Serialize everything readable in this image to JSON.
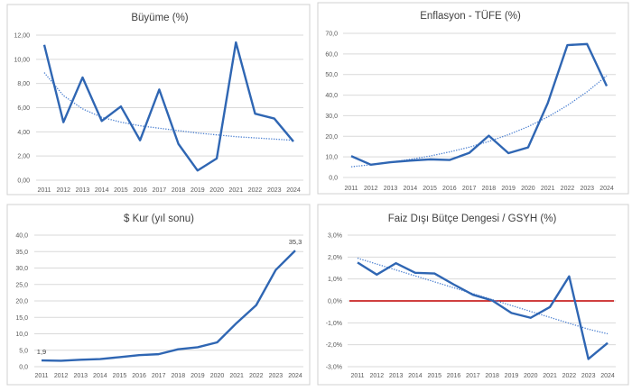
{
  "colors": {
    "line": "#2f66b3",
    "trend": "#4a7fd0",
    "grid": "#d9d9d9",
    "reference": "#c00000",
    "panel_border": "#d0d0d0"
  },
  "chart_data": [
    {
      "type": "line",
      "title": "Büyüme (%)",
      "categories": [
        "2011",
        "2012",
        "2013",
        "2014",
        "2015",
        "2016",
        "2017",
        "2018",
        "2019",
        "2020",
        "2021",
        "2022",
        "2023",
        "2024"
      ],
      "values": [
        11.2,
        4.8,
        8.5,
        4.9,
        6.1,
        3.3,
        7.5,
        3.0,
        0.8,
        1.8,
        11.4,
        5.5,
        5.1,
        3.2
      ],
      "trendline": {
        "type": "logarithmic",
        "style": "dotted",
        "values": [
          8.9,
          7.0,
          5.9,
          5.2,
          4.8,
          4.5,
          4.3,
          4.1,
          3.9,
          3.75,
          3.6,
          3.5,
          3.4,
          3.3
        ]
      },
      "ylim": [
        0,
        12
      ],
      "yticks": [
        "0,00",
        "2,00",
        "4,00",
        "6,00",
        "8,00",
        "10,00",
        "12,00"
      ],
      "grid": true,
      "xlabel": "",
      "ylabel": ""
    },
    {
      "type": "line",
      "title": "Enflasyon - TÜFE (%)",
      "categories": [
        "2011",
        "2012",
        "2013",
        "2014",
        "2015",
        "2016",
        "2017",
        "2018",
        "2019",
        "2020",
        "2021",
        "2022",
        "2023",
        "2024"
      ],
      "values": [
        10.4,
        6.2,
        7.4,
        8.2,
        8.8,
        8.5,
        11.9,
        20.3,
        11.8,
        14.6,
        36.1,
        64.3,
        64.8,
        44.4
      ],
      "trendline": {
        "type": "exponential",
        "style": "dotted",
        "values": [
          5.2,
          6.2,
          7.4,
          8.8,
          10.4,
          12.4,
          14.7,
          17.5,
          20.8,
          24.7,
          29.4,
          35.0,
          41.6,
          49.4
        ]
      },
      "ylim": [
        0,
        70
      ],
      "yticks": [
        "0,0",
        "10,0",
        "20,0",
        "30,0",
        "40,0",
        "50,0",
        "60,0",
        "70,0"
      ],
      "grid": true,
      "xlabel": "",
      "ylabel": ""
    },
    {
      "type": "line",
      "title": "$ Kur (yıl sonu)",
      "categories": [
        "2011",
        "2012",
        "2013",
        "2014",
        "2015",
        "2016",
        "2017",
        "2018",
        "2019",
        "2020",
        "2021",
        "2022",
        "2023",
        "2024"
      ],
      "values": [
        1.9,
        1.8,
        2.1,
        2.3,
        2.9,
        3.5,
        3.8,
        5.3,
        5.9,
        7.4,
        13.3,
        18.7,
        29.4,
        35.3
      ],
      "data_labels": [
        {
          "category": "2011",
          "text": "1,9"
        },
        {
          "category": "2024",
          "text": "35,3"
        }
      ],
      "ylim": [
        0,
        40
      ],
      "yticks": [
        "0,0",
        "5,0",
        "10,0",
        "15,0",
        "20,0",
        "25,0",
        "30,0",
        "35,0",
        "40,0"
      ],
      "grid": true,
      "xlabel": "",
      "ylabel": ""
    },
    {
      "type": "line",
      "title": "Faiz Dışı Bütçe Dengesi / GSYH (%)",
      "categories": [
        "2011",
        "2012",
        "2013",
        "2014",
        "2015",
        "2016",
        "2017",
        "2018",
        "2019",
        "2020",
        "2021",
        "2022",
        "2023",
        "2024"
      ],
      "values": [
        1.75,
        1.2,
        1.72,
        1.28,
        1.25,
        0.75,
        0.28,
        0.02,
        -0.55,
        -0.77,
        -0.28,
        1.12,
        -2.65,
        -1.92
      ],
      "trendline": {
        "type": "linear",
        "style": "dotted",
        "values": [
          1.95,
          1.68,
          1.41,
          1.14,
          0.87,
          0.6,
          0.33,
          0.06,
          -0.21,
          -0.48,
          -0.75,
          -1.02,
          -1.29,
          -1.5
        ]
      },
      "reference_line": {
        "y": 0
      },
      "ylim": [
        -3,
        3
      ],
      "yticks": [
        "-3,0%",
        "-2,0%",
        "-1,0%",
        "0,0%",
        "1,0%",
        "2,0%",
        "3,0%"
      ],
      "grid": true,
      "xlabel": "",
      "ylabel": ""
    }
  ]
}
